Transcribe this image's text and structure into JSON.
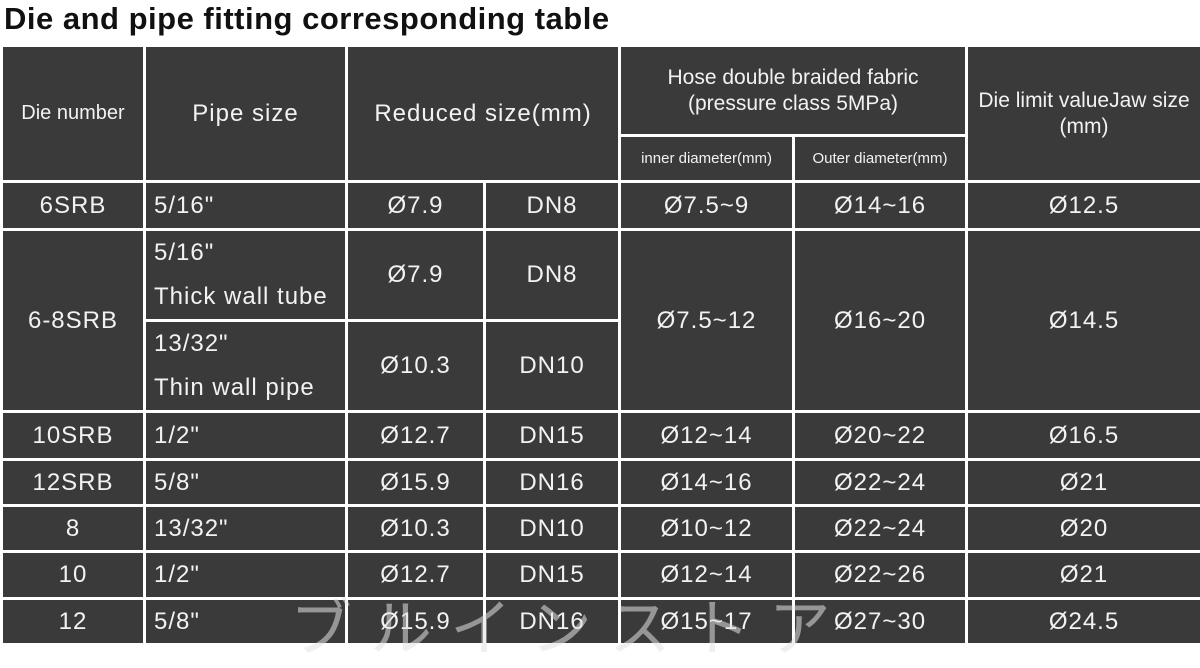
{
  "title": "Die and pipe fitting corresponding table",
  "table": {
    "header": {
      "die_number": "Die number",
      "pipe_size": "Pipe size",
      "reduced_size": "Reduced size(mm)",
      "hose": [
        "Hose double braided fabric",
        "(pressure class 5MPa)"
      ],
      "inner_diameter": "inner diameter(mm)",
      "outer_diameter": "Outer diameter(mm)",
      "die_limit": [
        "Die limit valueJaw size",
        "(mm)"
      ]
    },
    "rows": [
      [
        "6SRB",
        "5/16\"",
        "Ø7.9",
        "DN8",
        "Ø7.5~9",
        "Ø14~16",
        "Ø12.5"
      ],
      [
        "6-8SRB",
        [
          "5/16\"",
          "Thick wall tube"
        ],
        "Ø7.9",
        "DN8",
        "Ø7.5~12",
        "Ø16~20",
        "Ø14.5"
      ],
      [
        [
          "13/32\"",
          "Thin wall pipe"
        ],
        "Ø10.3",
        "DN10"
      ],
      [
        "10SRB",
        "1/2\"",
        "Ø12.7",
        "DN15",
        "Ø12~14",
        "Ø20~22",
        "Ø16.5"
      ],
      [
        "12SRB",
        "5/8\"",
        "Ø15.9",
        "DN16",
        "Ø14~16",
        "Ø22~24",
        "Ø21"
      ],
      [
        "8",
        "13/32\"",
        "Ø10.3",
        "DN10",
        "Ø10~12",
        "Ø22~24",
        "Ø20"
      ],
      [
        "10",
        "1/2\"",
        "Ø12.7",
        "DN15",
        "Ø12~14",
        "Ø22~26",
        "Ø21"
      ],
      [
        "12",
        "5/8\"",
        "Ø15.9",
        "DN16",
        "Ø15~17",
        "Ø27~30",
        "Ø24.5"
      ]
    ]
  },
  "watermark": "ブルインストア"
}
